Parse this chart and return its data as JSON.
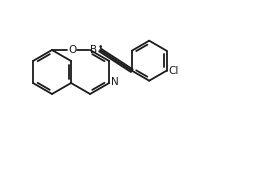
{
  "bg_color": "#ffffff",
  "line_color": "#1a1a1a",
  "line_width": 1.3,
  "font_size": 7.5,
  "label_N": "N",
  "label_O": "O",
  "label_B": "B",
  "label_Cl": "Cl",
  "figsize": [
    2.71,
    1.85
  ],
  "dpi": 100
}
